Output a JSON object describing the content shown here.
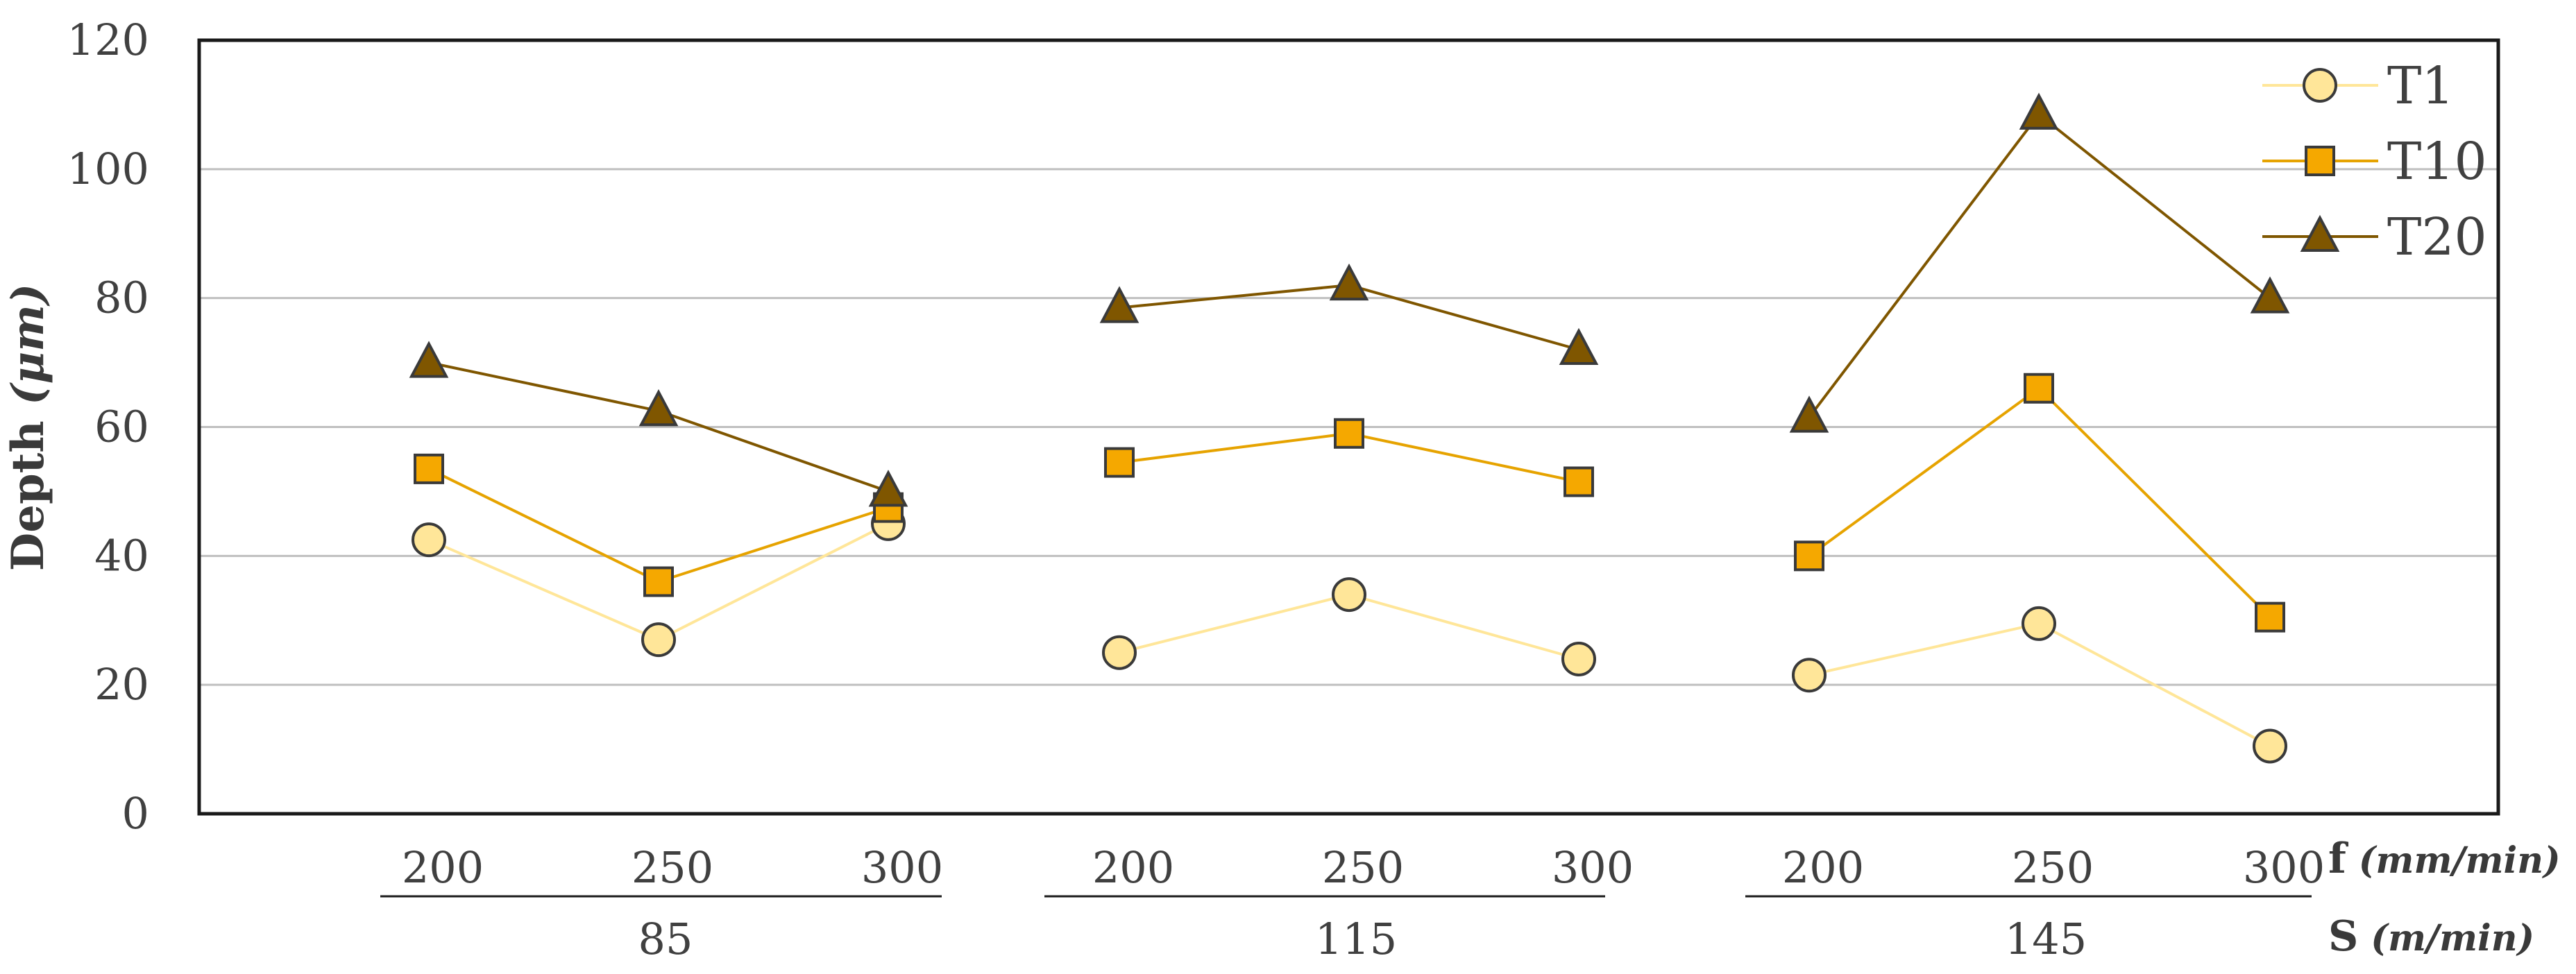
{
  "chart_data": {
    "type": "line",
    "ylabel": "Depth",
    "ylabel_unit": "(μm)",
    "ylim": [
      0,
      120
    ],
    "yticks": [
      0,
      20,
      40,
      60,
      80,
      100,
      120
    ],
    "grid": true,
    "legend_position": "top-right",
    "x_levels": {
      "f_label": "f",
      "f_unit": "(mm/min)",
      "s_label": "S",
      "s_unit": "(m/min)",
      "groups": [
        {
          "s": "85",
          "f": [
            "200",
            "250",
            "300"
          ]
        },
        {
          "s": "115",
          "f": [
            "200",
            "250",
            "300"
          ]
        },
        {
          "s": "145",
          "f": [
            "200",
            "250",
            "300"
          ]
        }
      ]
    },
    "series": [
      {
        "name": "T1",
        "marker": "circle",
        "line_color": "#FFE699",
        "fill": "#FFE699",
        "values": [
          42.5,
          27,
          45,
          25,
          34,
          24,
          21.5,
          29.5,
          10.5
        ]
      },
      {
        "name": "T10",
        "marker": "square",
        "line_color": "#E6A300",
        "fill": "#F5A800",
        "values": [
          53.5,
          36,
          47.5,
          54.5,
          59,
          51.5,
          40,
          66,
          30.5
        ]
      },
      {
        "name": "T20",
        "marker": "triangle",
        "line_color": "#7F5600",
        "fill": "#7F5600",
        "values": [
          70,
          62.5,
          50,
          78.5,
          82,
          72,
          61.5,
          108.5,
          80
        ]
      }
    ]
  }
}
